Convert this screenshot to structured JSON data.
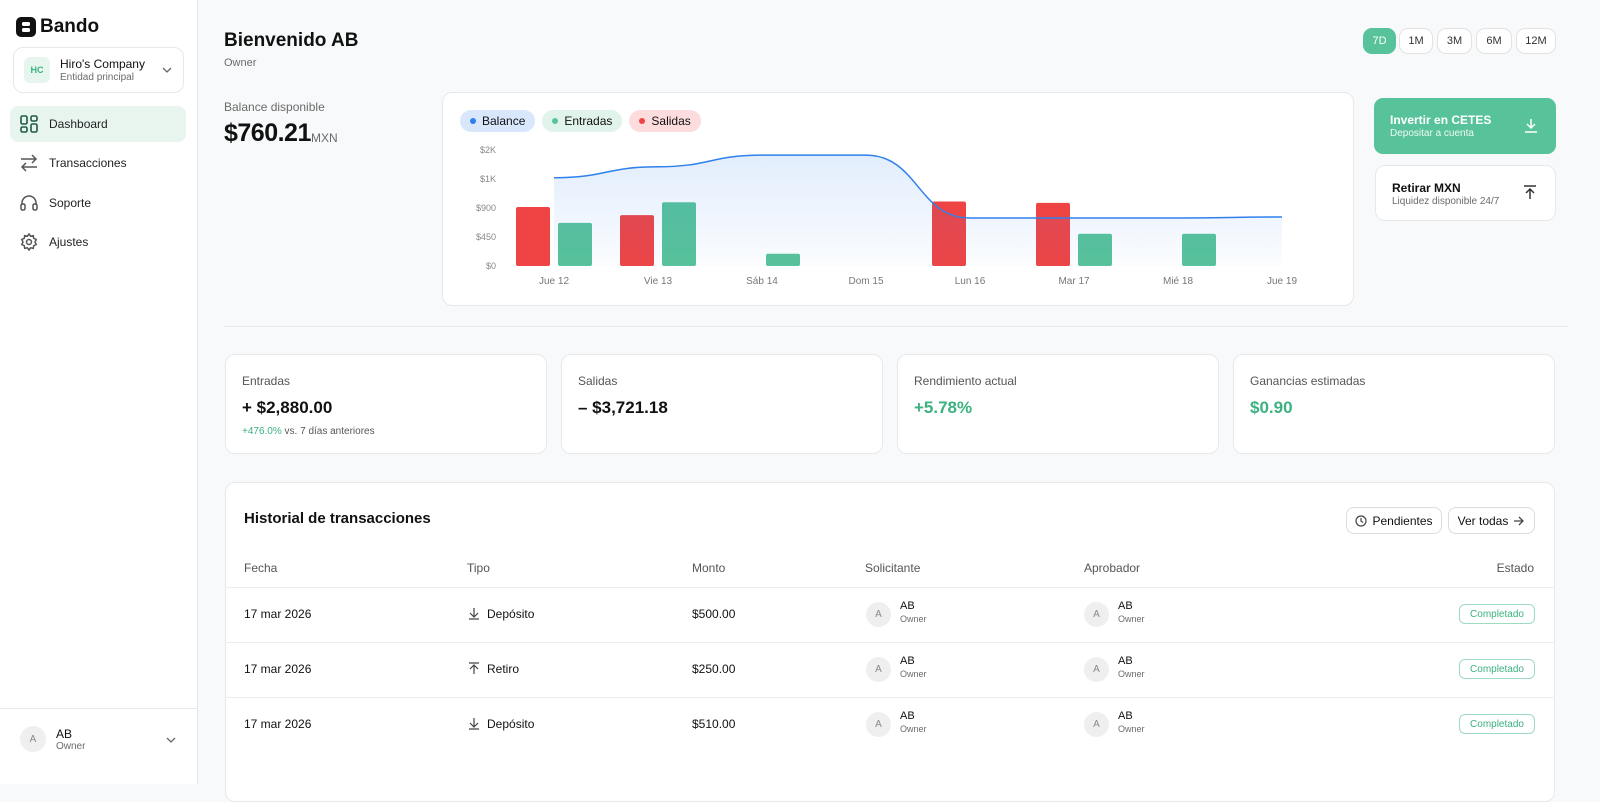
{
  "sidebar": {
    "brand": "Bando",
    "company": {
      "initials": "HC",
      "name": "Hiro's Company",
      "subtitle": "Entidad principal"
    },
    "nav": [
      "Dashboard",
      "Transacciones",
      "Soporte",
      "Ajustes"
    ],
    "user": {
      "initials": "A",
      "name": "AB",
      "role": "Owner"
    }
  },
  "header": {
    "title": "Bienvenido AB",
    "subtitle": "Owner",
    "ranges": [
      "7D",
      "1M",
      "3M",
      "6M",
      "12M"
    ]
  },
  "balance": {
    "label": "Balance disponible",
    "amount": "$760.21",
    "currency": "MXN"
  },
  "chart_data": {
    "type": "combo",
    "categories": [
      "Jue 12",
      "Vie 13",
      "Sáb 14",
      "Dom 15",
      "Lun 16",
      "Mar 17",
      "Mié 18",
      "Jue 19"
    ],
    "series": [
      {
        "name": "Balance",
        "type": "line",
        "color": "#2f80ed",
        "values": [
          1370,
          1540,
          1720,
          1720,
          745,
          745,
          745,
          760
        ]
      },
      {
        "name": "Entradas",
        "type": "bar",
        "color": "#58c39a",
        "values": [
          670,
          990,
          190,
          null,
          null,
          500,
          500,
          null
        ]
      },
      {
        "name": "Salidas",
        "type": "bar",
        "color": "#ef4444",
        "values": [
          915,
          790,
          null,
          null,
          1000,
          980,
          null,
          null
        ]
      }
    ],
    "ylim": [
      0,
      1800
    ],
    "yticks": [
      {
        "value": 0,
        "label": "$0"
      },
      {
        "value": 450,
        "label": "$450"
      },
      {
        "value": 900,
        "label": "$900"
      },
      {
        "value": 1350,
        "label": "$1K"
      },
      {
        "value": 1800,
        "label": "$2K"
      }
    ]
  },
  "actions": [
    {
      "title": "Invertir en CETES",
      "subtitle": "Depositar a cuenta"
    },
    {
      "title": "Retirar MXN",
      "subtitle": "Liquidez disponible 24/7"
    }
  ],
  "stats": [
    {
      "label": "Entradas",
      "value": "+ $2,880.00",
      "change": "+476.0%",
      "note": "vs. 7 días anteriores"
    },
    {
      "label": "Salidas",
      "value": "– $3,721.18"
    },
    {
      "label": "Rendimiento actual",
      "value": "+5.78%"
    },
    {
      "label": "Ganancias estimadas",
      "value": "$0.90"
    }
  ],
  "transactions": {
    "title": "Historial de transacciones",
    "buttons": [
      "Pendientes",
      "Ver todas"
    ],
    "columns": [
      "Fecha",
      "Tipo",
      "Monto",
      "Solicitante",
      "Aprobador",
      "Estado"
    ],
    "rows": [
      {
        "fecha": "17 mar 2026",
        "tipo": "Depósito",
        "monto": "$500.00",
        "solicitante": {
          "initials": "A",
          "name": "AB",
          "role": "Owner"
        },
        "aprobador": {
          "initials": "A",
          "name": "AB",
          "role": "Owner"
        },
        "estado": "Completado"
      },
      {
        "fecha": "17 mar 2026",
        "tipo": "Retiro",
        "monto": "$250.00",
        "solicitante": {
          "initials": "A",
          "name": "AB",
          "role": "Owner"
        },
        "aprobador": {
          "initials": "A",
          "name": "AB",
          "role": "Owner"
        },
        "estado": "Completado"
      },
      {
        "fecha": "17 mar 2026",
        "tipo": "Depósito",
        "monto": "$510.00",
        "solicitante": {
          "initials": "A",
          "name": "AB",
          "role": "Owner"
        },
        "aprobador": {
          "initials": "A",
          "name": "AB",
          "role": "Owner"
        },
        "estado": "Completado"
      }
    ]
  }
}
